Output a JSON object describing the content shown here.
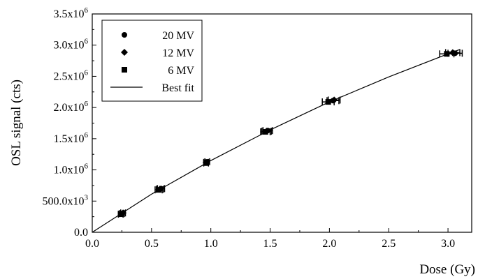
{
  "chart_data": {
    "type": "scatter",
    "xlabel": "Dose (Gy)",
    "ylabel": "OSL signal (cts)",
    "xlim": [
      0.0,
      3.2
    ],
    "ylim": [
      0.0,
      3500000
    ],
    "x_ticks": [
      {
        "value": 0.0,
        "label": "0.0"
      },
      {
        "value": 0.5,
        "label": "0.5"
      },
      {
        "value": 1.0,
        "label": "1.0"
      },
      {
        "value": 1.5,
        "label": "1.5"
      },
      {
        "value": 2.0,
        "label": "2.0"
      },
      {
        "value": 2.5,
        "label": "2.5"
      },
      {
        "value": 3.0,
        "label": "3.0"
      }
    ],
    "y_ticks": [
      {
        "value": 0,
        "mantissa": "0.0",
        "exp": ""
      },
      {
        "value": 500000,
        "mantissa": "500.0x10",
        "exp": "3"
      },
      {
        "value": 1000000,
        "mantissa": "1.0x10",
        "exp": "6"
      },
      {
        "value": 1500000,
        "mantissa": "1.5x10",
        "exp": "6"
      },
      {
        "value": 2000000,
        "mantissa": "2.0x10",
        "exp": "6"
      },
      {
        "value": 2500000,
        "mantissa": "2.5x10",
        "exp": "6"
      },
      {
        "value": 3000000,
        "mantissa": "3.0x10",
        "exp": "6"
      },
      {
        "value": 3500000,
        "mantissa": "3.5x10",
        "exp": "6"
      }
    ],
    "grid": false,
    "legend_position": "top-left",
    "series": [
      {
        "name": "20 MV",
        "marker": "circle",
        "points": [
          {
            "x": 0.25,
            "y": 300000,
            "xerr": 0.02
          },
          {
            "x": 0.58,
            "y": 700000,
            "xerr": 0.03
          },
          {
            "x": 0.97,
            "y": 1130000,
            "xerr": 0.02
          },
          {
            "x": 1.48,
            "y": 1630000,
            "xerr": 0.04
          },
          {
            "x": 2.03,
            "y": 2110000,
            "xerr": 0.05
          },
          {
            "x": 3.06,
            "y": 2870000,
            "xerr": 0.06
          }
        ]
      },
      {
        "name": "12 MV",
        "marker": "diamond",
        "points": [
          {
            "x": 0.26,
            "y": 310000,
            "xerr": 0.02
          },
          {
            "x": 0.57,
            "y": 690000,
            "xerr": 0.03
          },
          {
            "x": 0.96,
            "y": 1120000,
            "xerr": 0.02
          },
          {
            "x": 1.47,
            "y": 1620000,
            "xerr": 0.04
          },
          {
            "x": 2.04,
            "y": 2120000,
            "xerr": 0.05
          },
          {
            "x": 3.04,
            "y": 2880000,
            "xerr": 0.06
          }
        ]
      },
      {
        "name": "6 MV",
        "marker": "square",
        "points": [
          {
            "x": 0.24,
            "y": 290000,
            "xerr": 0.02
          },
          {
            "x": 0.56,
            "y": 680000,
            "xerr": 0.03
          },
          {
            "x": 0.96,
            "y": 1110000,
            "xerr": 0.02
          },
          {
            "x": 1.46,
            "y": 1610000,
            "xerr": 0.04
          },
          {
            "x": 1.99,
            "y": 2090000,
            "xerr": 0.05
          },
          {
            "x": 2.99,
            "y": 2860000,
            "xerr": 0.06
          }
        ]
      }
    ],
    "fit": {
      "name": "Best fit",
      "points": [
        {
          "x": 0.0,
          "y": 0
        },
        {
          "x": 0.5,
          "y": 610000
        },
        {
          "x": 1.0,
          "y": 1150000
        },
        {
          "x": 1.5,
          "y": 1640000
        },
        {
          "x": 2.0,
          "y": 2090000
        },
        {
          "x": 2.5,
          "y": 2490000
        },
        {
          "x": 3.0,
          "y": 2860000
        },
        {
          "x": 3.1,
          "y": 2930000
        }
      ]
    },
    "colors": {
      "marker": "#000000",
      "line": "#000000"
    }
  }
}
